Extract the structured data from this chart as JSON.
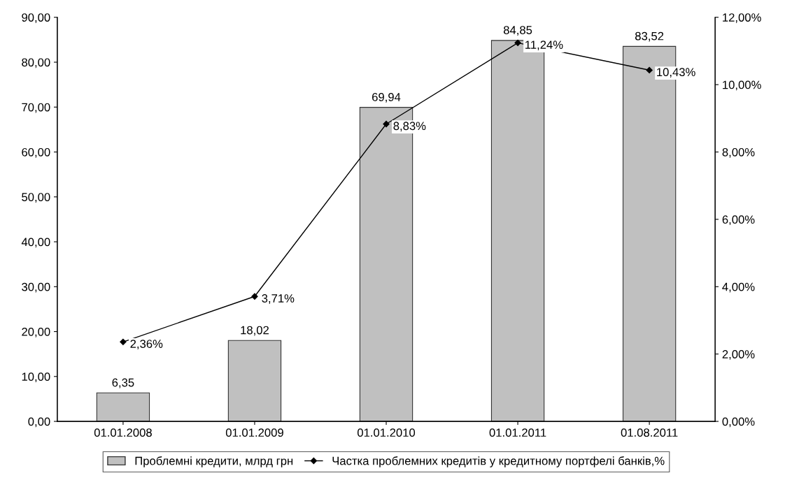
{
  "chart_data": {
    "type": "bar",
    "categories": [
      "01.01.2008",
      "01.01.2009",
      "01.01.2010",
      "01.01.2011",
      "01.08.2011"
    ],
    "series": [
      {
        "name": "Проблемні кредити, млрд грн",
        "color": "#c0c0c0",
        "values": [
          6.35,
          18.02,
          69.94,
          84.85,
          83.52
        ],
        "value_labels": [
          "6,35",
          "18,02",
          "69,94",
          "84,85",
          "83,52"
        ]
      },
      {
        "name": "Частка проблемних кредитів у кредитному портфелі банків,%",
        "type": "line",
        "axis": "y2",
        "color": "#000000",
        "marker": "diamond",
        "line_style": "solid",
        "values": [
          2.36,
          3.71,
          8.83,
          11.24,
          10.43
        ],
        "value_labels": [
          "2,36%",
          "3,71%",
          "8,83%",
          "11,24%",
          "10,43%"
        ]
      }
    ],
    "ylim": [
      0,
      90
    ],
    "yticks": [
      {
        "value": 0,
        "label": "0,00"
      },
      {
        "value": 10,
        "label": "10,00"
      },
      {
        "value": 20,
        "label": "20,00"
      },
      {
        "value": 30,
        "label": "30,00"
      },
      {
        "value": 40,
        "label": "40,00"
      },
      {
        "value": 50,
        "label": "50,00"
      },
      {
        "value": 60,
        "label": "60,00"
      },
      {
        "value": 70,
        "label": "70,00"
      },
      {
        "value": 80,
        "label": "80,00"
      },
      {
        "value": 90,
        "label": "90,00"
      }
    ],
    "y2lim": [
      0,
      12
    ],
    "y2ticks": [
      {
        "value": 0,
        "label": "0,00%"
      },
      {
        "value": 2,
        "label": "2,00%"
      },
      {
        "value": 4,
        "label": "4,00%"
      },
      {
        "value": 6,
        "label": "6,00%"
      },
      {
        "value": 8,
        "label": "8,00%"
      },
      {
        "value": 10,
        "label": "10,00%"
      },
      {
        "value": 12,
        "label": "12,00%"
      }
    ],
    "grid": false,
    "legend": "bottom"
  }
}
